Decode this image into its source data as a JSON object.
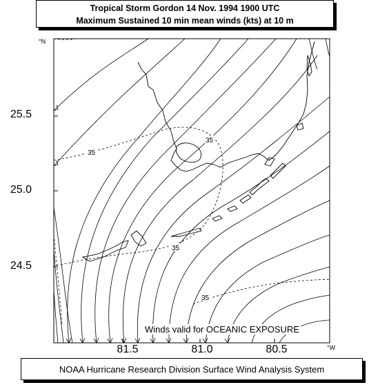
{
  "title": {
    "line1": "Tropical Storm Gordon  14 Nov. 1994 1900 UTC",
    "line2": "Maximum Sustained 10 min mean winds (kts) at 10 m"
  },
  "axes": {
    "lat_unit": "°N",
    "lon_unit": "°W",
    "lat_ticks": [
      "25.5",
      "25.0",
      "24.5"
    ],
    "lon_ticks": [
      "81.5",
      "81.0",
      "80.5"
    ]
  },
  "contour_labels": [
    "35",
    "35",
    "35",
    "35"
  ],
  "notice": "Winds valid for OCEANIC EXPOSURE",
  "footer": "NOAA Hurricane Research Division Surface Wind Analysis System"
}
